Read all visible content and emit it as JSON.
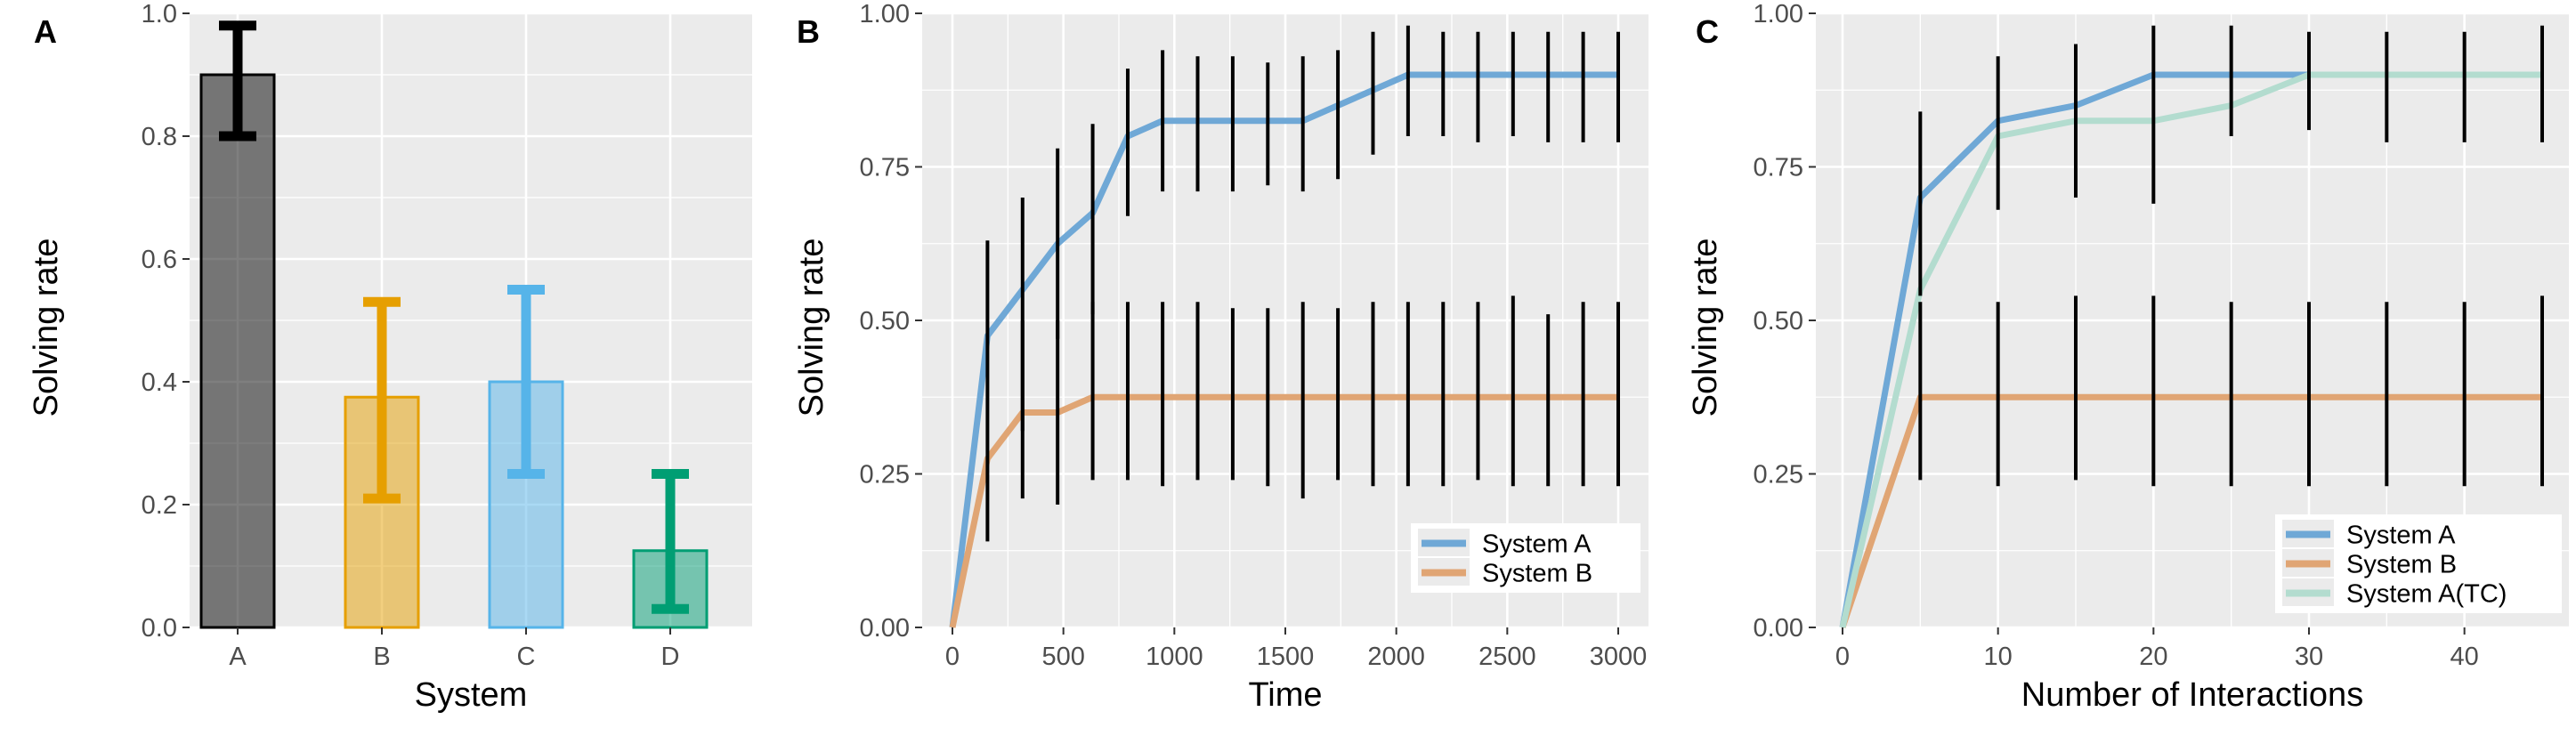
{
  "chart_data": [
    {
      "panel": "A",
      "type": "bar",
      "xlabel": "System",
      "ylabel": "Solving rate",
      "ylim": [
        0,
        1.0
      ],
      "yticks": [
        0.0,
        0.2,
        0.4,
        0.6,
        0.8,
        1.0
      ],
      "ytick_labels": [
        "0.0",
        "0.2",
        "0.4",
        "0.6",
        "0.8",
        "1.0"
      ],
      "categories": [
        "A",
        "B",
        "C",
        "D"
      ],
      "values": [
        0.9,
        0.375,
        0.4,
        0.125
      ],
      "error_low": [
        0.8,
        0.21,
        0.25,
        0.03
      ],
      "error_high": [
        0.98,
        0.53,
        0.55,
        0.25
      ],
      "colors": [
        "#000000",
        "#E69F00",
        "#56B4E9",
        "#009E73"
      ],
      "grid": true,
      "legend": "none"
    },
    {
      "panel": "B",
      "type": "line",
      "xlabel": "Time",
      "ylabel": "Solving rate",
      "xlim": [
        0,
        3000
      ],
      "ylim": [
        0,
        1.0
      ],
      "xticks": [
        0,
        500,
        1000,
        1500,
        2000,
        2500,
        3000
      ],
      "xtick_labels": [
        "0",
        "500",
        "1000",
        "1500",
        "2000",
        "2500",
        "3000"
      ],
      "yticks": [
        0.0,
        0.25,
        0.5,
        0.75,
        1.0
      ],
      "ytick_labels": [
        "0.00",
        "0.25",
        "0.50",
        "0.75",
        "1.00"
      ],
      "series": [
        {
          "name": "System A",
          "color": "#6fa8d6",
          "x": [
            0,
            158,
            316,
            474,
            632,
            790,
            947,
            1105,
            1263,
            1421,
            1579,
            1737,
            1895,
            2053,
            2211,
            2368,
            2526,
            2684,
            2842,
            3000
          ],
          "y": [
            0,
            0.475,
            0.55,
            0.625,
            0.675,
            0.8,
            0.825,
            0.825,
            0.825,
            0.825,
            0.825,
            0.85,
            0.875,
            0.9,
            0.9,
            0.9,
            0.9,
            0.9,
            0.9,
            0.9
          ],
          "err_low": [
            null,
            0.14,
            0.32,
            0.47,
            0.51,
            0.67,
            0.71,
            0.71,
            0.71,
            0.72,
            0.71,
            0.73,
            0.77,
            0.8,
            0.8,
            0.79,
            0.8,
            0.79,
            0.79,
            0.79
          ],
          "err_high": [
            null,
            0.63,
            0.7,
            0.78,
            0.82,
            0.91,
            0.94,
            0.93,
            0.93,
            0.92,
            0.93,
            0.94,
            0.97,
            0.98,
            0.97,
            0.97,
            0.97,
            0.97,
            0.97,
            0.97
          ]
        },
        {
          "name": "System B",
          "color": "#e0a574",
          "x": [
            0,
            158,
            316,
            474,
            632,
            790,
            947,
            1105,
            1263,
            1421,
            1579,
            1737,
            1895,
            2053,
            2211,
            2368,
            2526,
            2684,
            2842,
            3000
          ],
          "y": [
            0,
            0.275,
            0.35,
            0.35,
            0.375,
            0.375,
            0.375,
            0.375,
            0.375,
            0.375,
            0.375,
            0.375,
            0.375,
            0.375,
            0.375,
            0.375,
            0.375,
            0.375,
            0.375,
            0.375
          ],
          "err_low": [
            null,
            null,
            0.21,
            0.2,
            0.24,
            0.24,
            0.23,
            0.24,
            0.24,
            0.23,
            0.21,
            0.24,
            0.23,
            0.23,
            0.23,
            0.24,
            0.23,
            0.23,
            0.23,
            0.23
          ],
          "err_high": [
            null,
            null,
            0.5,
            0.5,
            0.53,
            0.53,
            0.53,
            0.53,
            0.52,
            0.52,
            0.53,
            0.52,
            0.53,
            0.53,
            0.53,
            0.53,
            0.54,
            0.51,
            0.53,
            0.53
          ]
        }
      ],
      "grid": true,
      "legend": "bottom-right"
    },
    {
      "panel": "C",
      "type": "line",
      "xlabel": "Number of Interactions",
      "ylabel": "Solving rate",
      "xlim": [
        0,
        45
      ],
      "ylim": [
        0,
        1.0
      ],
      "xticks": [
        0,
        10,
        20,
        30,
        40
      ],
      "xtick_labels": [
        "0",
        "10",
        "20",
        "30",
        "40"
      ],
      "yticks": [
        0.0,
        0.25,
        0.5,
        0.75,
        1.0
      ],
      "ytick_labels": [
        "0.00",
        "0.25",
        "0.50",
        "0.75",
        "1.00"
      ],
      "series": [
        {
          "name": "System A",
          "color": "#6fa8d6",
          "x": [
            0,
            5,
            10,
            15,
            20,
            25,
            30,
            35,
            40,
            45
          ],
          "y": [
            0,
            0.7,
            0.825,
            0.85,
            0.9,
            0.9,
            0.9,
            0.9,
            0.9,
            0.9
          ],
          "err_low": [
            null,
            0.54,
            0.68,
            0.7,
            0.69,
            0.8,
            0.81,
            0.79,
            0.79,
            0.79
          ],
          "err_high": [
            null,
            0.84,
            0.93,
            0.95,
            0.98,
            0.98,
            0.97,
            0.97,
            0.97,
            0.98
          ]
        },
        {
          "name": "System B",
          "color": "#e0a574",
          "x": [
            0,
            5,
            10,
            15,
            20,
            25,
            30,
            35,
            40,
            45
          ],
          "y": [
            0,
            0.375,
            0.375,
            0.375,
            0.375,
            0.375,
            0.375,
            0.375,
            0.375,
            0.375
          ],
          "err_low": [
            null,
            0.24,
            0.23,
            0.24,
            0.23,
            0.23,
            0.23,
            0.23,
            0.23,
            0.23
          ],
          "err_high": [
            null,
            0.53,
            0.53,
            0.54,
            0.54,
            0.53,
            0.53,
            0.53,
            0.53,
            0.54
          ]
        },
        {
          "name": "System A(TC)",
          "color": "#b3dccf",
          "x": [
            0,
            5,
            10,
            15,
            20,
            25,
            30,
            35,
            40,
            45
          ],
          "y": [
            0,
            0.55,
            0.8,
            0.825,
            0.825,
            0.85,
            0.9,
            0.9,
            0.9,
            0.9
          ],
          "err_low": [
            null,
            null,
            null,
            null,
            null,
            null,
            null,
            null,
            null,
            null
          ],
          "err_high": [
            null,
            null,
            null,
            null,
            null,
            null,
            null,
            null,
            null,
            null
          ]
        }
      ],
      "grid": true,
      "legend": "bottom-right"
    }
  ]
}
